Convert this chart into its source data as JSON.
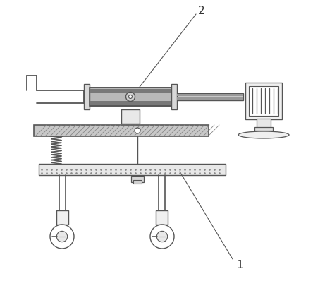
{
  "bg_color": "#ffffff",
  "lc": "#555555",
  "lc2": "#666666",
  "dg": "#888888",
  "mg": "#aaaaaa",
  "lg": "#cccccc",
  "vlg": "#e8e8e8",
  "label1": "1",
  "label2": "2",
  "fig_width": 4.44,
  "fig_height": 4.05,
  "dpi": 100
}
